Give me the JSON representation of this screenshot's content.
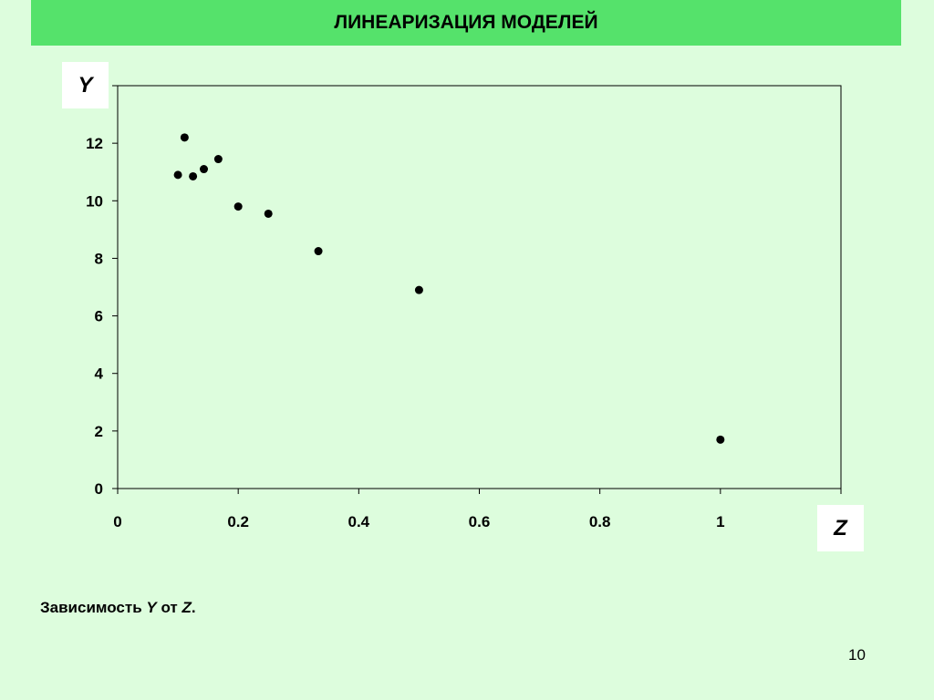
{
  "slide": {
    "title": "ЛИНЕАРИЗАЦИЯ МОДЕЛЕЙ",
    "caption_prefix": "Зависимость ",
    "caption_y": "Y",
    "caption_middle": " от ",
    "caption_z": "Z",
    "caption_suffix": ".",
    "page_number": "10"
  },
  "colors": {
    "background": "#ddfddd",
    "title_bar": "#55e26b",
    "plot_area": "#ddfddd",
    "points": "#000000"
  },
  "chart_data": {
    "type": "scatter",
    "title": "",
    "xlabel": "Z",
    "ylabel": "Y",
    "xlim": [
      0,
      1.2
    ],
    "ylim": [
      0,
      14
    ],
    "x_ticks": [
      0,
      0.2,
      0.4,
      0.6,
      0.8,
      1
    ],
    "x_tick_labels": [
      "0",
      "0.2",
      "0.4",
      "0.6",
      "0.8",
      "1"
    ],
    "y_ticks": [
      0,
      2,
      4,
      6,
      8,
      10,
      12
    ],
    "y_tick_labels": [
      "0",
      "2",
      "4",
      "6",
      "8",
      "10",
      "12"
    ],
    "grid": false,
    "legend": "none",
    "points": [
      {
        "x": 0.1,
        "y": 10.9
      },
      {
        "x": 0.111,
        "y": 12.2
      },
      {
        "x": 0.125,
        "y": 10.85
      },
      {
        "x": 0.143,
        "y": 11.1
      },
      {
        "x": 0.167,
        "y": 11.45
      },
      {
        "x": 0.2,
        "y": 9.8
      },
      {
        "x": 0.25,
        "y": 9.55
      },
      {
        "x": 0.333,
        "y": 8.25
      },
      {
        "x": 0.5,
        "y": 6.9
      },
      {
        "x": 1.0,
        "y": 1.7
      }
    ]
  }
}
